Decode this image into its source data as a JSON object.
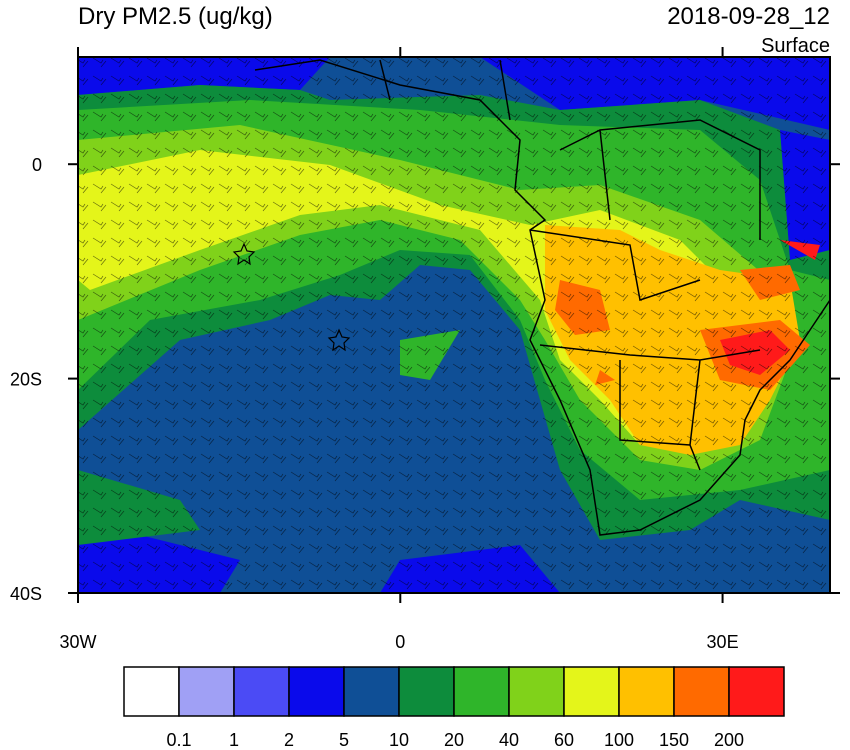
{
  "header": {
    "title": "Dry PM2.5 (ug/kg)",
    "time": "2018-09-28_12",
    "level": "Surface"
  },
  "map": {
    "lon_range": [
      -30,
      40
    ],
    "lat_range": [
      -40,
      10
    ],
    "lon_ticks": [
      {
        "value": -30,
        "label": "30W"
      },
      {
        "value": 0,
        "label": "0"
      },
      {
        "value": 30,
        "label": "30E"
      }
    ],
    "lat_ticks": [
      {
        "value": 0,
        "label": "0"
      },
      {
        "value": -20,
        "label": "20S"
      },
      {
        "value": -40,
        "label": "40S"
      }
    ]
  },
  "colorbar": {
    "levels": [
      0.1,
      1,
      2,
      5,
      10,
      20,
      40,
      60,
      100,
      150,
      200
    ],
    "colors": [
      "#ffffff",
      "#a0a0f5",
      "#4b4bf5",
      "#0a0aeb",
      "#0f4f96",
      "#0d8c3c",
      "#2fb52a",
      "#80d21a",
      "#e4f51a",
      "#ffc000",
      "#ff6a00",
      "#ff1a1a"
    ]
  }
}
